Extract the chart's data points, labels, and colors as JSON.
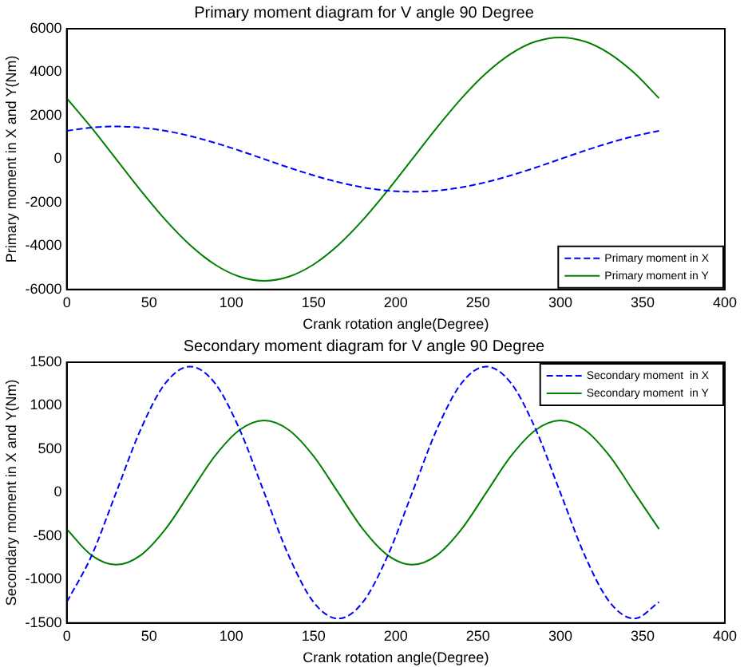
{
  "chart_data": [
    {
      "type": "line",
      "title": "Primary moment diagram for V angle 90 Degree",
      "xlabel": "Crank rotation angle(Degree)",
      "ylabel": "Primary moment in X and Y(Nm)",
      "x": [
        0,
        15,
        30,
        45,
        60,
        75,
        90,
        105,
        120,
        135,
        150,
        165,
        180,
        195,
        210,
        225,
        240,
        255,
        270,
        285,
        300,
        315,
        330,
        345,
        360
      ],
      "xlim": [
        0,
        400
      ],
      "xticks": [
        0,
        50,
        100,
        150,
        200,
        250,
        300,
        350,
        400
      ],
      "ylim": [
        -6000,
        6000
      ],
      "yticks": [
        -6000,
        -4000,
        -2000,
        0,
        2000,
        4000,
        6000
      ],
      "grid": false,
      "legend": "bottom right",
      "marker": "none",
      "series": [
        {
          "name": "Primary moment in X",
          "color": "#0000ff",
          "line_style": "dashed",
          "values": [
            1300,
            1450,
            1500,
            1450,
            1300,
            1060,
            750,
            390,
            0,
            -390,
            -750,
            -1060,
            -1300,
            -1450,
            -1500,
            -1450,
            -1300,
            -1060,
            -750,
            -390,
            0,
            390,
            750,
            1060,
            1300
          ]
        },
        {
          "name": "Primary moment in Y",
          "color": "#008000",
          "line_style": "solid",
          "values": [
            2800,
            1450,
            0,
            -1450,
            -2800,
            -3960,
            -4850,
            -5410,
            -5600,
            -5410,
            -4850,
            -3960,
            -2800,
            -1450,
            0,
            1450,
            2800,
            3960,
            4850,
            5410,
            5600,
            5410,
            4850,
            3960,
            2800
          ]
        }
      ]
    },
    {
      "type": "line",
      "title": "Secondary moment diagram for V angle 90 Degree",
      "xlabel": "Crank rotation angle(Degree)",
      "ylabel": "Secondary moment in X and Y(Nm)",
      "x": [
        0,
        15,
        30,
        45,
        60,
        75,
        90,
        105,
        120,
        135,
        150,
        165,
        180,
        195,
        210,
        225,
        240,
        255,
        270,
        285,
        300,
        315,
        330,
        345,
        360
      ],
      "xlim": [
        0,
        400
      ],
      "xticks": [
        0,
        50,
        100,
        150,
        200,
        250,
        300,
        350,
        400
      ],
      "ylim": [
        -1500,
        1500
      ],
      "yticks": [
        -1500,
        -1000,
        -500,
        0,
        500,
        1000,
        1500
      ],
      "grid": false,
      "legend": "top right",
      "marker": "none",
      "series": [
        {
          "name": "Secondary moment  in X",
          "color": "#0000ff",
          "line_style": "dashed",
          "values": [
            -1260,
            -730,
            0,
            730,
            1260,
            1450,
            1260,
            730,
            0,
            -730,
            -1260,
            -1450,
            -1260,
            -730,
            0,
            730,
            1260,
            1450,
            1260,
            730,
            0,
            -730,
            -1260,
            -1450,
            -1260
          ]
        },
        {
          "name": "Secondary moment  in Y",
          "color": "#008000",
          "line_style": "solid",
          "values": [
            -420,
            -720,
            -830,
            -720,
            -420,
            0,
            420,
            720,
            830,
            720,
            420,
            0,
            -420,
            -720,
            -830,
            -720,
            -420,
            0,
            420,
            720,
            830,
            720,
            420,
            0,
            -420
          ]
        }
      ]
    }
  ]
}
